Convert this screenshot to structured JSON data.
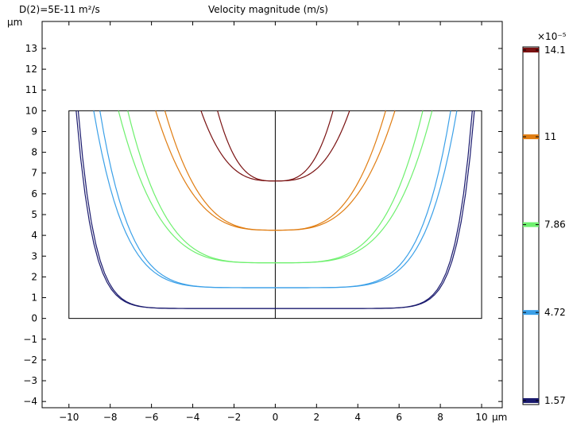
{
  "header": {
    "left_label": "D(2)=5E-11 m²/s",
    "title": "Velocity magnitude (m/s)"
  },
  "chart_data": {
    "type": "contour",
    "title": "Velocity magnitude (m/s)",
    "subtitle": "D(2)=5E-11 m²/s",
    "xlabel": "",
    "ylabel": "",
    "x_unit": "µm",
    "y_unit": "µm",
    "xlim": [
      -11.3,
      11.0
    ],
    "ylim": [
      -4.3,
      14.3
    ],
    "xticks": [
      -10,
      -8,
      -6,
      -4,
      -2,
      0,
      2,
      4,
      6,
      8,
      10
    ],
    "yticks": [
      -4,
      -3,
      -2,
      -1,
      0,
      1,
      2,
      3,
      4,
      5,
      6,
      7,
      8,
      9,
      10,
      11,
      12,
      13
    ],
    "domain_rect": {
      "x": [
        -10,
        10
      ],
      "y": [
        0,
        10
      ]
    },
    "center_line_x": 0,
    "grid": false,
    "contours": [
      {
        "level": 14.1,
        "color": "#7a1212",
        "curves": [
          {
            "x_edge": 3.6,
            "y_min": 6.62
          },
          {
            "x_edge": 2.8,
            "y_min": 6.62
          }
        ]
      },
      {
        "level": 11,
        "color": "#e07d12",
        "curves": [
          {
            "x_edge": 5.8,
            "y_min": 4.25
          },
          {
            "x_edge": 5.35,
            "y_min": 4.25
          }
        ]
      },
      {
        "level": 7.86,
        "color": "#6ef06e",
        "curves": [
          {
            "x_edge": 7.6,
            "y_min": 2.68
          },
          {
            "x_edge": 7.15,
            "y_min": 2.68
          }
        ]
      },
      {
        "level": 4.72,
        "color": "#3ba0e8",
        "curves": [
          {
            "x_edge": 8.8,
            "y_min": 1.48
          },
          {
            "x_edge": 8.5,
            "y_min": 1.48
          }
        ]
      },
      {
        "level": 1.57,
        "color": "#1a1a6e",
        "curves": [
          {
            "x_edge": 9.65,
            "y_min": 0.48
          },
          {
            "x_edge": 9.55,
            "y_min": 0.48
          }
        ]
      }
    ],
    "colorbar": {
      "exponent_label": "×10⁻⁵",
      "range": [
        1.57,
        14.1
      ],
      "tick_labels": [
        "14.1",
        "11",
        "7.86",
        "4.72",
        "1.57"
      ],
      "tick_values": [
        14.1,
        11,
        7.86,
        4.72,
        1.57
      ],
      "colors": [
        "#7a1212",
        "#e07d12",
        "#6ef06e",
        "#3ba0e8",
        "#1a1a6e"
      ]
    }
  }
}
